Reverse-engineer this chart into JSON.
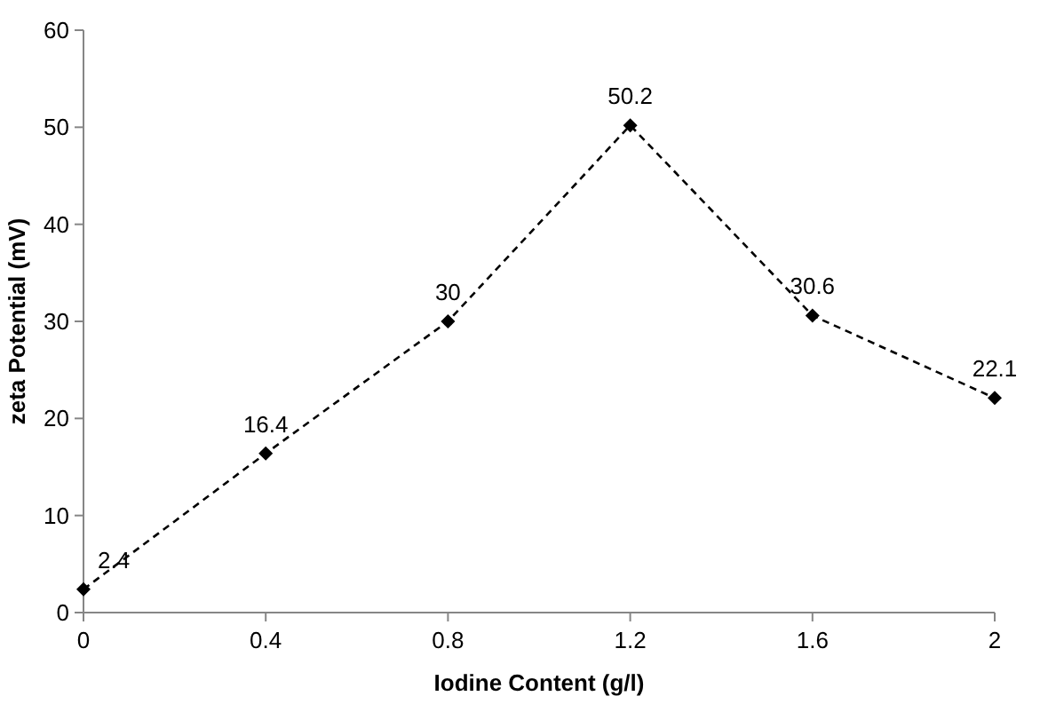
{
  "chart_data": {
    "type": "line",
    "xlabel": "Iodine Content (g/l)",
    "ylabel": "zeta Potential (mV)",
    "x": [
      0,
      0.4,
      0.8,
      1.2,
      1.6,
      2
    ],
    "series": [
      {
        "color": "#000000",
        "values": [
          2.4,
          16.4,
          30,
          50.2,
          30.6,
          22.1
        ]
      }
    ],
    "xlim": [
      0,
      2
    ],
    "xticks": [
      0,
      0.4,
      0.8,
      1.2,
      1.6,
      2
    ],
    "ylim": [
      0,
      60
    ],
    "yticks": [
      0,
      10,
      20,
      30,
      40,
      50,
      60
    ],
    "grid": false,
    "marker": "diamond",
    "line_style": "dashed",
    "data_labels": true
  }
}
